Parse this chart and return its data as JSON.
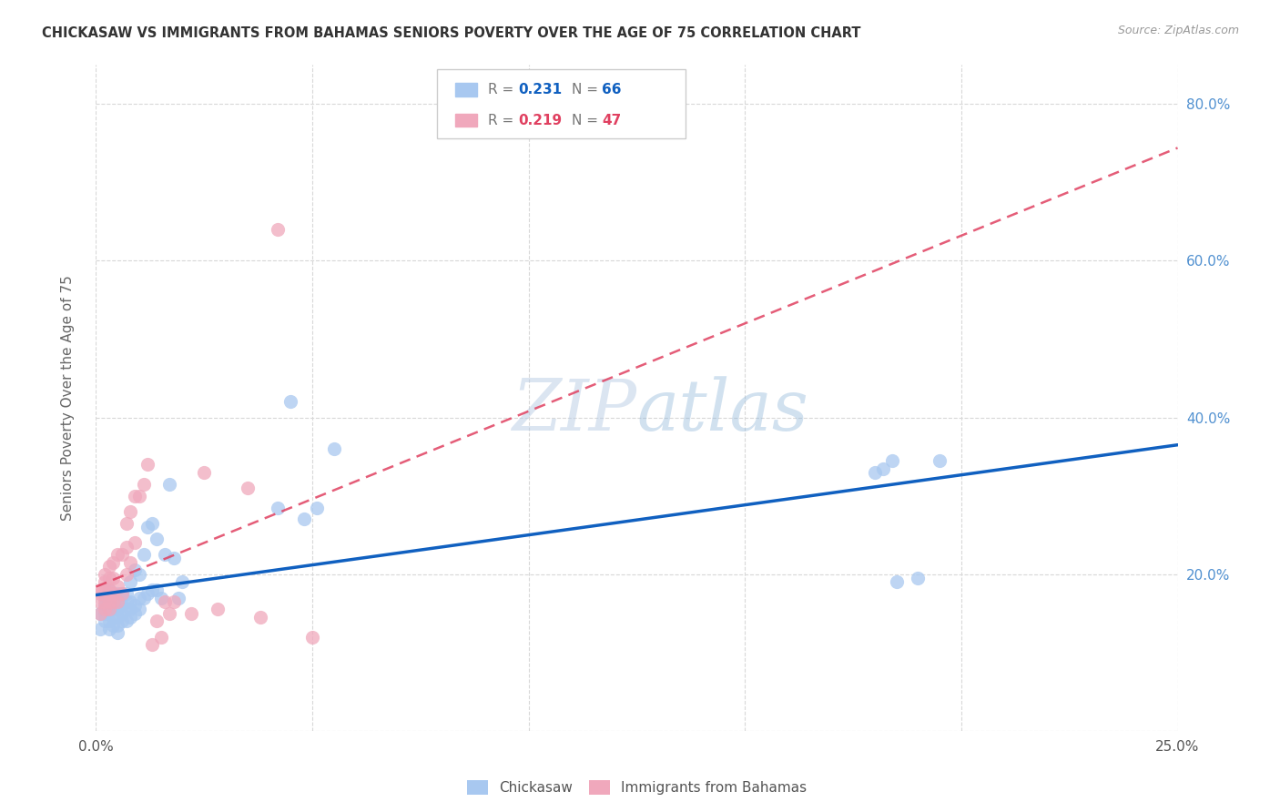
{
  "title": "CHICKASAW VS IMMIGRANTS FROM BAHAMAS SENIORS POVERTY OVER THE AGE OF 75 CORRELATION CHART",
  "source": "Source: ZipAtlas.com",
  "ylabel": "Seniors Poverty Over the Age of 75",
  "xlim": [
    0.0,
    0.25
  ],
  "ylim": [
    0.0,
    0.85
  ],
  "xticks": [
    0.0,
    0.05,
    0.1,
    0.15,
    0.2,
    0.25
  ],
  "xtick_labels": [
    "0.0%",
    "",
    "",
    "",
    "",
    "25.0%"
  ],
  "yticks_right": [
    0.0,
    0.2,
    0.4,
    0.6,
    0.8
  ],
  "ytick_labels_right": [
    "",
    "20.0%",
    "40.0%",
    "60.0%",
    "80.0%"
  ],
  "chickasaw_R": 0.231,
  "chickasaw_N": 66,
  "bahamas_R": 0.219,
  "bahamas_N": 47,
  "chickasaw_color": "#a8c8f0",
  "bahamas_color": "#f0a8bc",
  "chickasaw_line_color": "#1060c0",
  "bahamas_line_color": "#e04060",
  "grid_color": "#d8d8d8",
  "background_color": "#ffffff",
  "chickasaw_x": [
    0.001,
    0.001,
    0.002,
    0.002,
    0.002,
    0.002,
    0.003,
    0.003,
    0.003,
    0.003,
    0.003,
    0.003,
    0.004,
    0.004,
    0.004,
    0.004,
    0.004,
    0.005,
    0.005,
    0.005,
    0.005,
    0.005,
    0.005,
    0.006,
    0.006,
    0.006,
    0.006,
    0.007,
    0.007,
    0.007,
    0.007,
    0.008,
    0.008,
    0.008,
    0.008,
    0.009,
    0.009,
    0.009,
    0.01,
    0.01,
    0.01,
    0.011,
    0.011,
    0.012,
    0.012,
    0.013,
    0.013,
    0.014,
    0.014,
    0.015,
    0.016,
    0.017,
    0.018,
    0.019,
    0.02,
    0.042,
    0.045,
    0.048,
    0.051,
    0.055,
    0.18,
    0.182,
    0.184,
    0.185,
    0.19,
    0.195
  ],
  "chickasaw_y": [
    0.13,
    0.15,
    0.14,
    0.15,
    0.16,
    0.17,
    0.13,
    0.14,
    0.155,
    0.16,
    0.17,
    0.18,
    0.135,
    0.145,
    0.155,
    0.16,
    0.175,
    0.125,
    0.135,
    0.145,
    0.155,
    0.165,
    0.175,
    0.14,
    0.15,
    0.16,
    0.175,
    0.14,
    0.155,
    0.165,
    0.175,
    0.145,
    0.155,
    0.165,
    0.19,
    0.15,
    0.16,
    0.205,
    0.155,
    0.17,
    0.2,
    0.17,
    0.225,
    0.175,
    0.26,
    0.18,
    0.265,
    0.18,
    0.245,
    0.17,
    0.225,
    0.315,
    0.22,
    0.17,
    0.19,
    0.285,
    0.42,
    0.27,
    0.285,
    0.36,
    0.33,
    0.335,
    0.345,
    0.19,
    0.195,
    0.345
  ],
  "bahamas_x": [
    0.001,
    0.001,
    0.001,
    0.001,
    0.002,
    0.002,
    0.002,
    0.002,
    0.002,
    0.003,
    0.003,
    0.003,
    0.003,
    0.003,
    0.003,
    0.004,
    0.004,
    0.004,
    0.004,
    0.005,
    0.005,
    0.005,
    0.006,
    0.006,
    0.007,
    0.007,
    0.007,
    0.008,
    0.008,
    0.009,
    0.009,
    0.01,
    0.011,
    0.012,
    0.013,
    0.014,
    0.015,
    0.016,
    0.017,
    0.018,
    0.022,
    0.025,
    0.028,
    0.035,
    0.038,
    0.042,
    0.05
  ],
  "bahamas_y": [
    0.15,
    0.165,
    0.175,
    0.18,
    0.155,
    0.165,
    0.18,
    0.19,
    0.2,
    0.155,
    0.165,
    0.175,
    0.18,
    0.195,
    0.21,
    0.165,
    0.175,
    0.195,
    0.215,
    0.165,
    0.185,
    0.225,
    0.175,
    0.225,
    0.2,
    0.235,
    0.265,
    0.215,
    0.28,
    0.24,
    0.3,
    0.3,
    0.315,
    0.34,
    0.11,
    0.14,
    0.12,
    0.165,
    0.15,
    0.165,
    0.15,
    0.33,
    0.155,
    0.31,
    0.145,
    0.64,
    0.12
  ]
}
